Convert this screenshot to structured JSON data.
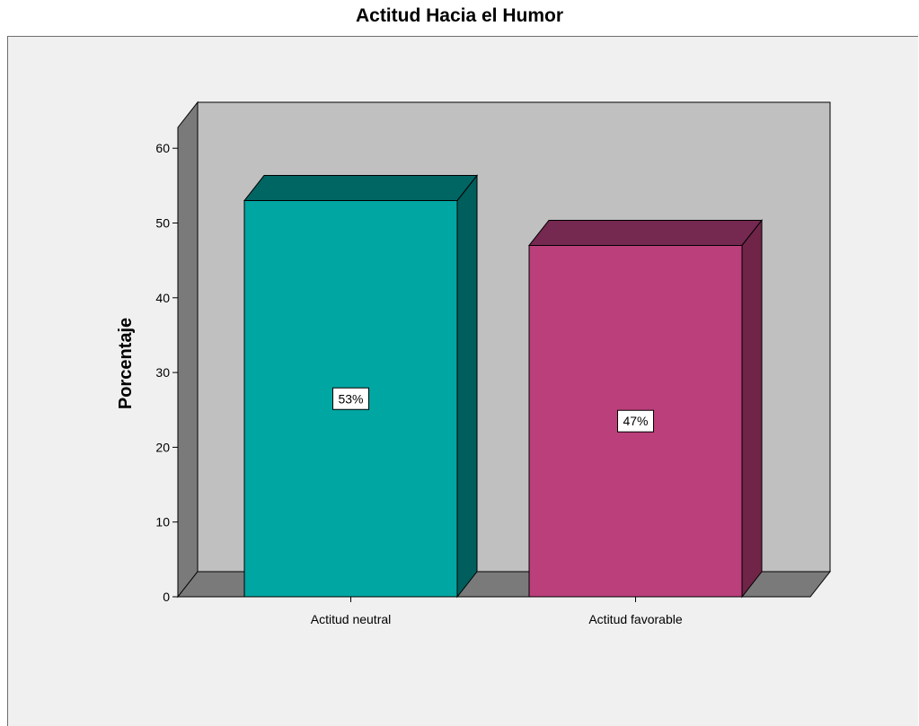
{
  "chart_data": {
    "type": "bar",
    "title": "Actitud Hacia el Humor",
    "xlabel": "",
    "ylabel": "Porcentaje",
    "categories": [
      "Actitud neutral",
      "Actitud favorable"
    ],
    "values": [
      53,
      47
    ],
    "data_labels": [
      "53%",
      "47%"
    ],
    "yticks": [
      "0",
      "10",
      "20",
      "30",
      "40",
      "50",
      "60"
    ],
    "ylim": [
      0,
      60
    ],
    "grid": false,
    "style": "3d",
    "colors": {
      "bars": [
        "#00a6a2",
        "#bb3f7b"
      ],
      "bars_top": [
        "#006664",
        "#752850"
      ],
      "bars_side": [
        "#005e5c",
        "#6f2448"
      ],
      "back_wall": "#c0c0c0",
      "side_wall": "#7a7a7a",
      "floor": "#7a7a7a",
      "plot_background": "#f0f0f0"
    }
  }
}
